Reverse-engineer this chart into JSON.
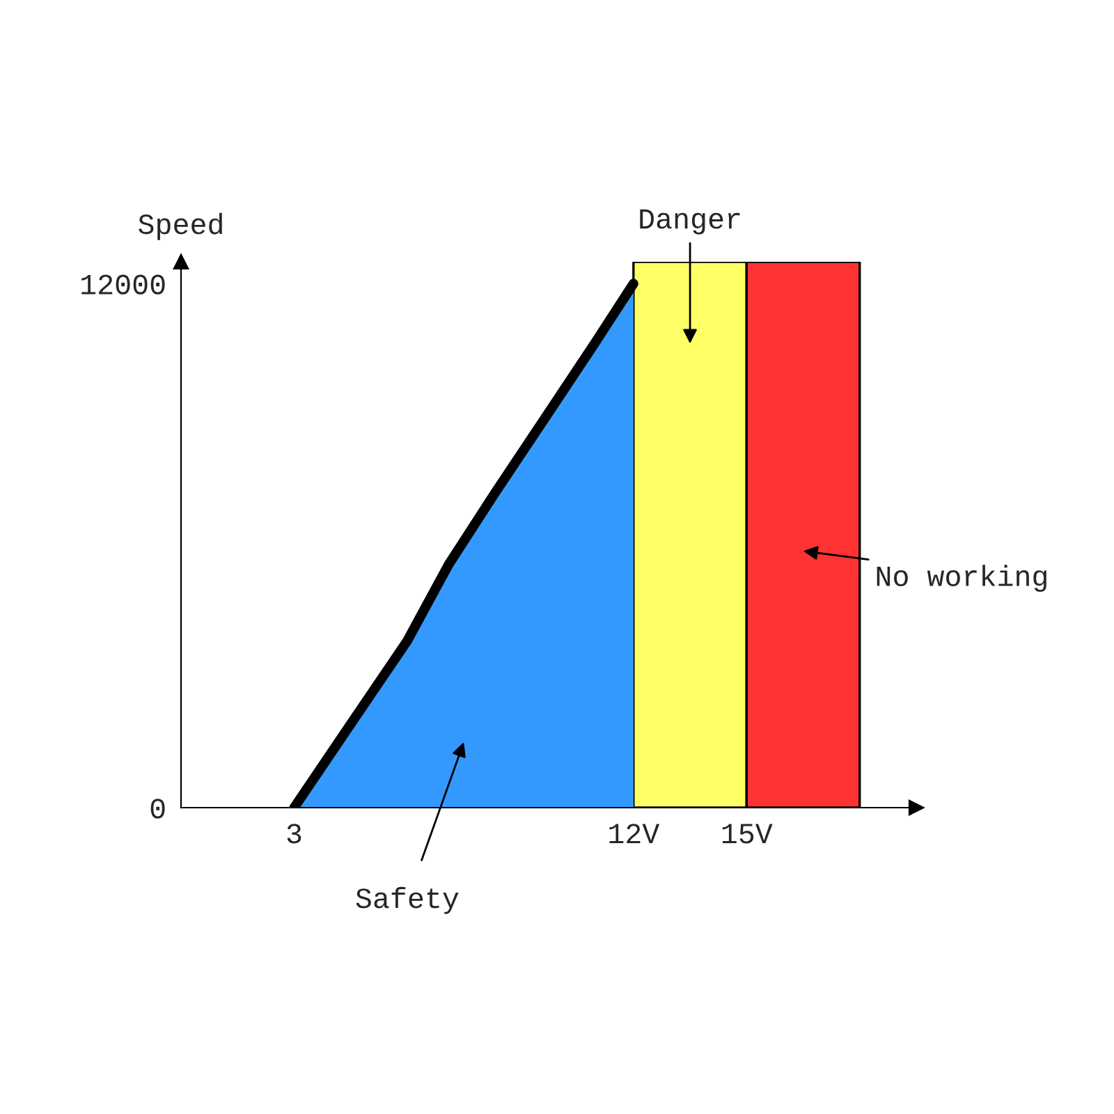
{
  "chart_data": {
    "type": "area",
    "ylabel": "Speed",
    "x": [
      3,
      5.0,
      6.0,
      7.1,
      8.3,
      9.9,
      11.0,
      12
    ],
    "series": [
      {
        "color": "#3399ff",
        "values": [
          0,
          2550,
          3820,
          5570,
          7170,
          9240,
          10670,
          12000
        ]
      }
    ],
    "xlim": [
      0,
      19.5
    ],
    "ylim": [
      0,
      12500
    ],
    "xticks": [
      3,
      {
        "value": 12,
        "label": "12V"
      },
      {
        "value": 15,
        "label": "15V"
      }
    ],
    "yticks": [
      0,
      12000
    ],
    "bands": [
      {
        "axis": "x",
        "from": 12,
        "to": 15,
        "color": "#ffff66",
        "label": "Danger"
      },
      {
        "axis": "x",
        "from": 15,
        "to": 18,
        "color": "#ff3333",
        "label": "No working"
      }
    ],
    "annotations": [
      "Safety"
    ],
    "grid": false,
    "legend": false
  }
}
